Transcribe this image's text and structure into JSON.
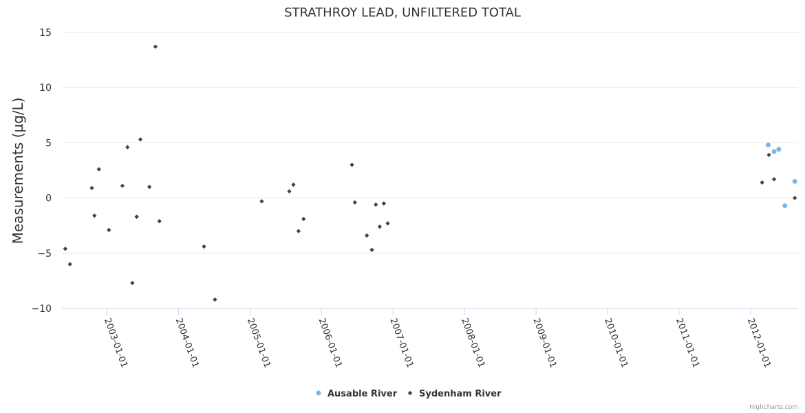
{
  "chart_data": {
    "type": "scatter",
    "title": "STRATHROY LEAD, UNFILTERED TOTAL",
    "xlabel": "",
    "ylabel": "Measurements (µg/L)",
    "xlim": [
      "2002-05-15",
      "2012-09-01"
    ],
    "ylim": [
      -10,
      15
    ],
    "yticks": [
      -10,
      -5,
      0,
      5,
      10,
      15
    ],
    "xticks": [
      "2003-01-01",
      "2004-01-01",
      "2005-01-01",
      "2006-01-01",
      "2007-01-01",
      "2008-01-01",
      "2009-01-01",
      "2010-01-01",
      "2011-01-01",
      "2012-01-01"
    ],
    "grid": true,
    "legend_position": "bottom-center",
    "credits": "Highcharts.com",
    "series": [
      {
        "name": "Ausable River",
        "marker": "circle",
        "color": "#7cb5ec",
        "points": [
          {
            "x": "2012-04-01",
            "y": 4.8
          },
          {
            "x": "2012-05-01",
            "y": 4.2
          },
          {
            "x": "2012-05-25",
            "y": 4.4
          },
          {
            "x": "2012-06-25",
            "y": -0.7
          },
          {
            "x": "2012-08-15",
            "y": 1.5
          }
        ]
      },
      {
        "name": "Sydenham River",
        "marker": "diamond",
        "color": "#434348",
        "points": [
          {
            "x": "2002-06-01",
            "y": -4.6
          },
          {
            "x": "2002-06-25",
            "y": -6.0
          },
          {
            "x": "2002-10-15",
            "y": 0.9
          },
          {
            "x": "2002-10-28",
            "y": -1.6
          },
          {
            "x": "2002-11-20",
            "y": 2.6
          },
          {
            "x": "2003-01-10",
            "y": -2.9
          },
          {
            "x": "2003-03-20",
            "y": 1.1
          },
          {
            "x": "2003-04-15",
            "y": 4.6
          },
          {
            "x": "2003-05-10",
            "y": -7.7
          },
          {
            "x": "2003-06-01",
            "y": -1.7
          },
          {
            "x": "2003-06-20",
            "y": 5.3
          },
          {
            "x": "2003-08-05",
            "y": 1.0
          },
          {
            "x": "2003-09-05",
            "y": 13.7
          },
          {
            "x": "2003-09-25",
            "y": -2.1
          },
          {
            "x": "2004-05-10",
            "y": -4.4
          },
          {
            "x": "2004-07-05",
            "y": -9.2
          },
          {
            "x": "2005-03-01",
            "y": -0.3
          },
          {
            "x": "2005-07-20",
            "y": 0.6
          },
          {
            "x": "2005-08-10",
            "y": 1.2
          },
          {
            "x": "2005-09-05",
            "y": -3.0
          },
          {
            "x": "2005-10-01",
            "y": -1.9
          },
          {
            "x": "2006-06-05",
            "y": 3.0
          },
          {
            "x": "2006-06-20",
            "y": -0.4
          },
          {
            "x": "2006-08-20",
            "y": -3.4
          },
          {
            "x": "2006-09-15",
            "y": -4.7
          },
          {
            "x": "2006-10-05",
            "y": -0.6
          },
          {
            "x": "2006-10-25",
            "y": -2.6
          },
          {
            "x": "2006-11-15",
            "y": -0.5
          },
          {
            "x": "2006-12-05",
            "y": -2.3
          },
          {
            "x": "2012-03-01",
            "y": 1.4
          },
          {
            "x": "2012-04-05",
            "y": 3.9
          },
          {
            "x": "2012-05-01",
            "y": 1.7
          },
          {
            "x": "2012-08-15",
            "y": 0.0
          }
        ]
      }
    ]
  }
}
